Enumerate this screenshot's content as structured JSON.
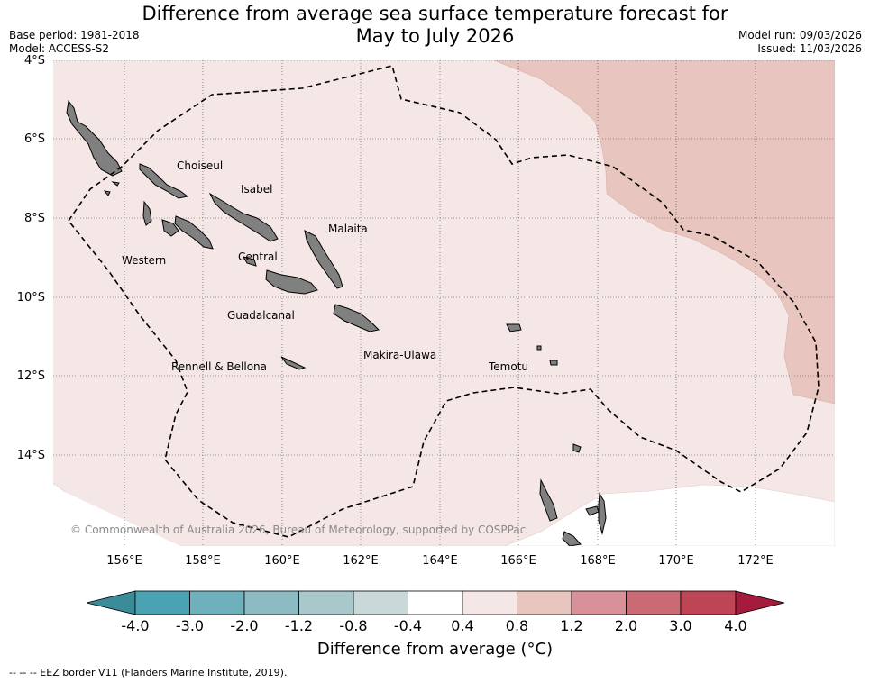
{
  "title_line1": "Difference from average sea surface temperature forecast for",
  "title_line2": "May to July 2026",
  "meta_left": [
    "Base period: 1981-2018",
    "Model: ACCESS-S2"
  ],
  "meta_right": [
    "Model run: 09/03/2026",
    "Issued: 11/03/2026"
  ],
  "lat_labels": [
    "4°S",
    "6°S",
    "8°S",
    "10°S",
    "12°S",
    "14°S"
  ],
  "lon_labels": [
    "156°E",
    "158°E",
    "160°E",
    "162°E",
    "164°E",
    "166°E",
    "168°E",
    "170°E",
    "172°E"
  ],
  "places": {
    "choiseul": "Choiseul",
    "isabel": "Isabel",
    "malaita": "Malaita",
    "western": "Western",
    "central": "Central",
    "guadalcanal": "Guadalcanal",
    "makira": "Makira-Ulawa",
    "temotu": "Temotu",
    "rennell": "Rennell & Bellona"
  },
  "copyright": "© Commonwealth of Australia 2026, Bureau of Meteorology, supported by COSPPac",
  "colorbar": {
    "labels": [
      "-4.0",
      "-3.0",
      "-2.0",
      "-1.2",
      "-0.8",
      "-0.4",
      "0.4",
      "0.8",
      "1.2",
      "2.0",
      "3.0",
      "4.0"
    ],
    "colors": [
      "#3a8c98",
      "#4aa3b3",
      "#6fb0bd",
      "#8dbbc4",
      "#a8c8cc",
      "#c9d8d9",
      "#ffffff",
      "#f5e7e5",
      "#e8c5bf",
      "#d89199",
      "#c96a75",
      "#bd4555",
      "#a51b3c"
    ],
    "title": "Difference from average (°C)"
  },
  "legend_note": "-- -- -- EEZ border V11 (Flanders Marine Institute, 2019).",
  "fill_colors": {
    "light_anomaly": "#f5e7e5",
    "moderate_anomaly": "#e8c5bf",
    "land": "#808080"
  }
}
